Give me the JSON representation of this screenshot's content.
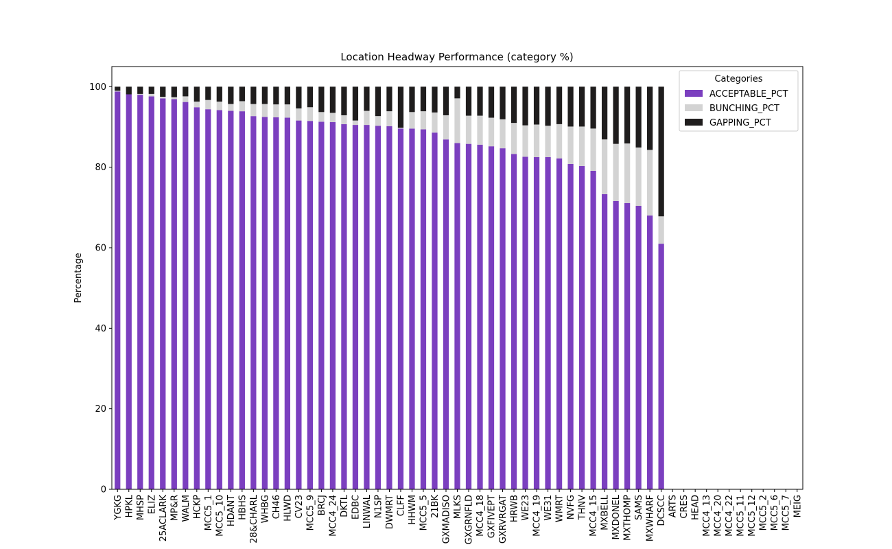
{
  "chart_data": {
    "type": "bar",
    "stacked": true,
    "title": "Location Headway Performance (category %)",
    "xlabel": "",
    "ylabel": "Percentage",
    "ylim": [
      0,
      105
    ],
    "yticks": [
      0,
      20,
      40,
      60,
      80,
      100
    ],
    "grid": false,
    "legend": {
      "title": "Categories",
      "position": "top-right"
    },
    "categories": [
      "YGKG",
      "HPKL",
      "MHSP",
      "ELIZ",
      "25ACLARK",
      "MP&R",
      "WALM",
      "HCKP",
      "MCC5_1",
      "MCC5_10",
      "HDANT",
      "HBHS",
      "28&CHARL",
      "WHBG",
      "CH46",
      "HLWD",
      "CV23",
      "MCC5_9",
      "BRCJ",
      "MCC4_24",
      "DKTL",
      "EDBC",
      "LINWAL",
      "N1SP",
      "DWMRT",
      "CLFF",
      "HHWM",
      "MCC5_5",
      "21BK",
      "GXMADISO",
      "MLKS",
      "GXGRNFLD",
      "MCC4_18",
      "GXFIVEPT",
      "GXRVRGAT",
      "HRWB",
      "WE23",
      "MCC4_19",
      "WE31",
      "WMRT",
      "NVFG",
      "THNV",
      "MCC4_15",
      "MXBELL",
      "MXDONEL",
      "MXTHOMP",
      "SAMS",
      "MXWHARF",
      "DCSCC",
      "ARTS",
      "CRES",
      "HEAD",
      "MCC4_13",
      "MCC4_20",
      "MCC4_22",
      "MCC5_11",
      "MCC5_12",
      "MCC5_2",
      "MCC5_6",
      "MCC5_7",
      "MEIG"
    ],
    "series": [
      {
        "name": "ACCEPTABLE_PCT",
        "color": "#7b3fbf",
        "values": [
          98.8,
          98.1,
          98.0,
          97.6,
          97.1,
          96.9,
          96.2,
          94.9,
          94.4,
          94.2,
          94.0,
          93.9,
          92.7,
          92.5,
          92.4,
          92.3,
          91.6,
          91.5,
          91.3,
          91.2,
          90.7,
          90.5,
          90.5,
          90.3,
          90.2,
          89.6,
          89.6,
          89.4,
          88.6,
          86.9,
          86.0,
          85.8,
          85.6,
          85.2,
          84.7,
          83.3,
          82.6,
          82.5,
          82.5,
          82.2,
          80.8,
          80.3,
          79.1,
          73.3,
          71.6,
          71.1,
          70.4,
          68.0,
          61.0,
          null,
          null,
          null,
          null,
          null,
          null,
          null,
          null,
          null,
          null,
          null,
          null
        ]
      },
      {
        "name": "BUNCHING_PCT",
        "color": "#d3d3d3",
        "values": [
          0.2,
          0.0,
          0.2,
          0.6,
          0.4,
          0.5,
          1.4,
          1.4,
          2.3,
          2.1,
          1.7,
          2.5,
          3.0,
          3.2,
          3.2,
          3.3,
          3.0,
          3.4,
          2.4,
          2.3,
          2.2,
          1.1,
          3.5,
          2.4,
          3.7,
          0.2,
          4.1,
          4.5,
          5.0,
          6.0,
          11.1,
          7.0,
          7.2,
          7.1,
          7.2,
          7.7,
          7.8,
          8.1,
          7.8,
          8.5,
          9.3,
          9.8,
          10.5,
          13.6,
          14.2,
          14.8,
          14.5,
          16.3,
          6.8,
          null,
          null,
          null,
          null,
          null,
          null,
          null,
          null,
          null,
          null,
          null,
          null
        ]
      },
      {
        "name": "GAPPING_PCT",
        "color": "#1f1d1d",
        "values": [
          1.0,
          1.9,
          1.8,
          1.8,
          2.5,
          2.6,
          2.4,
          3.7,
          3.3,
          3.7,
          4.3,
          3.6,
          4.3,
          4.3,
          4.4,
          4.4,
          5.4,
          5.1,
          6.3,
          6.5,
          7.1,
          8.4,
          6.0,
          7.3,
          6.1,
          10.2,
          6.3,
          6.1,
          6.4,
          7.1,
          2.9,
          7.2,
          7.2,
          7.7,
          8.1,
          9.0,
          9.6,
          9.4,
          9.7,
          9.3,
          9.9,
          9.9,
          10.4,
          13.1,
          14.2,
          14.1,
          15.1,
          15.7,
          32.2,
          null,
          null,
          null,
          null,
          null,
          null,
          null,
          null,
          null,
          null,
          null,
          null
        ]
      }
    ]
  }
}
